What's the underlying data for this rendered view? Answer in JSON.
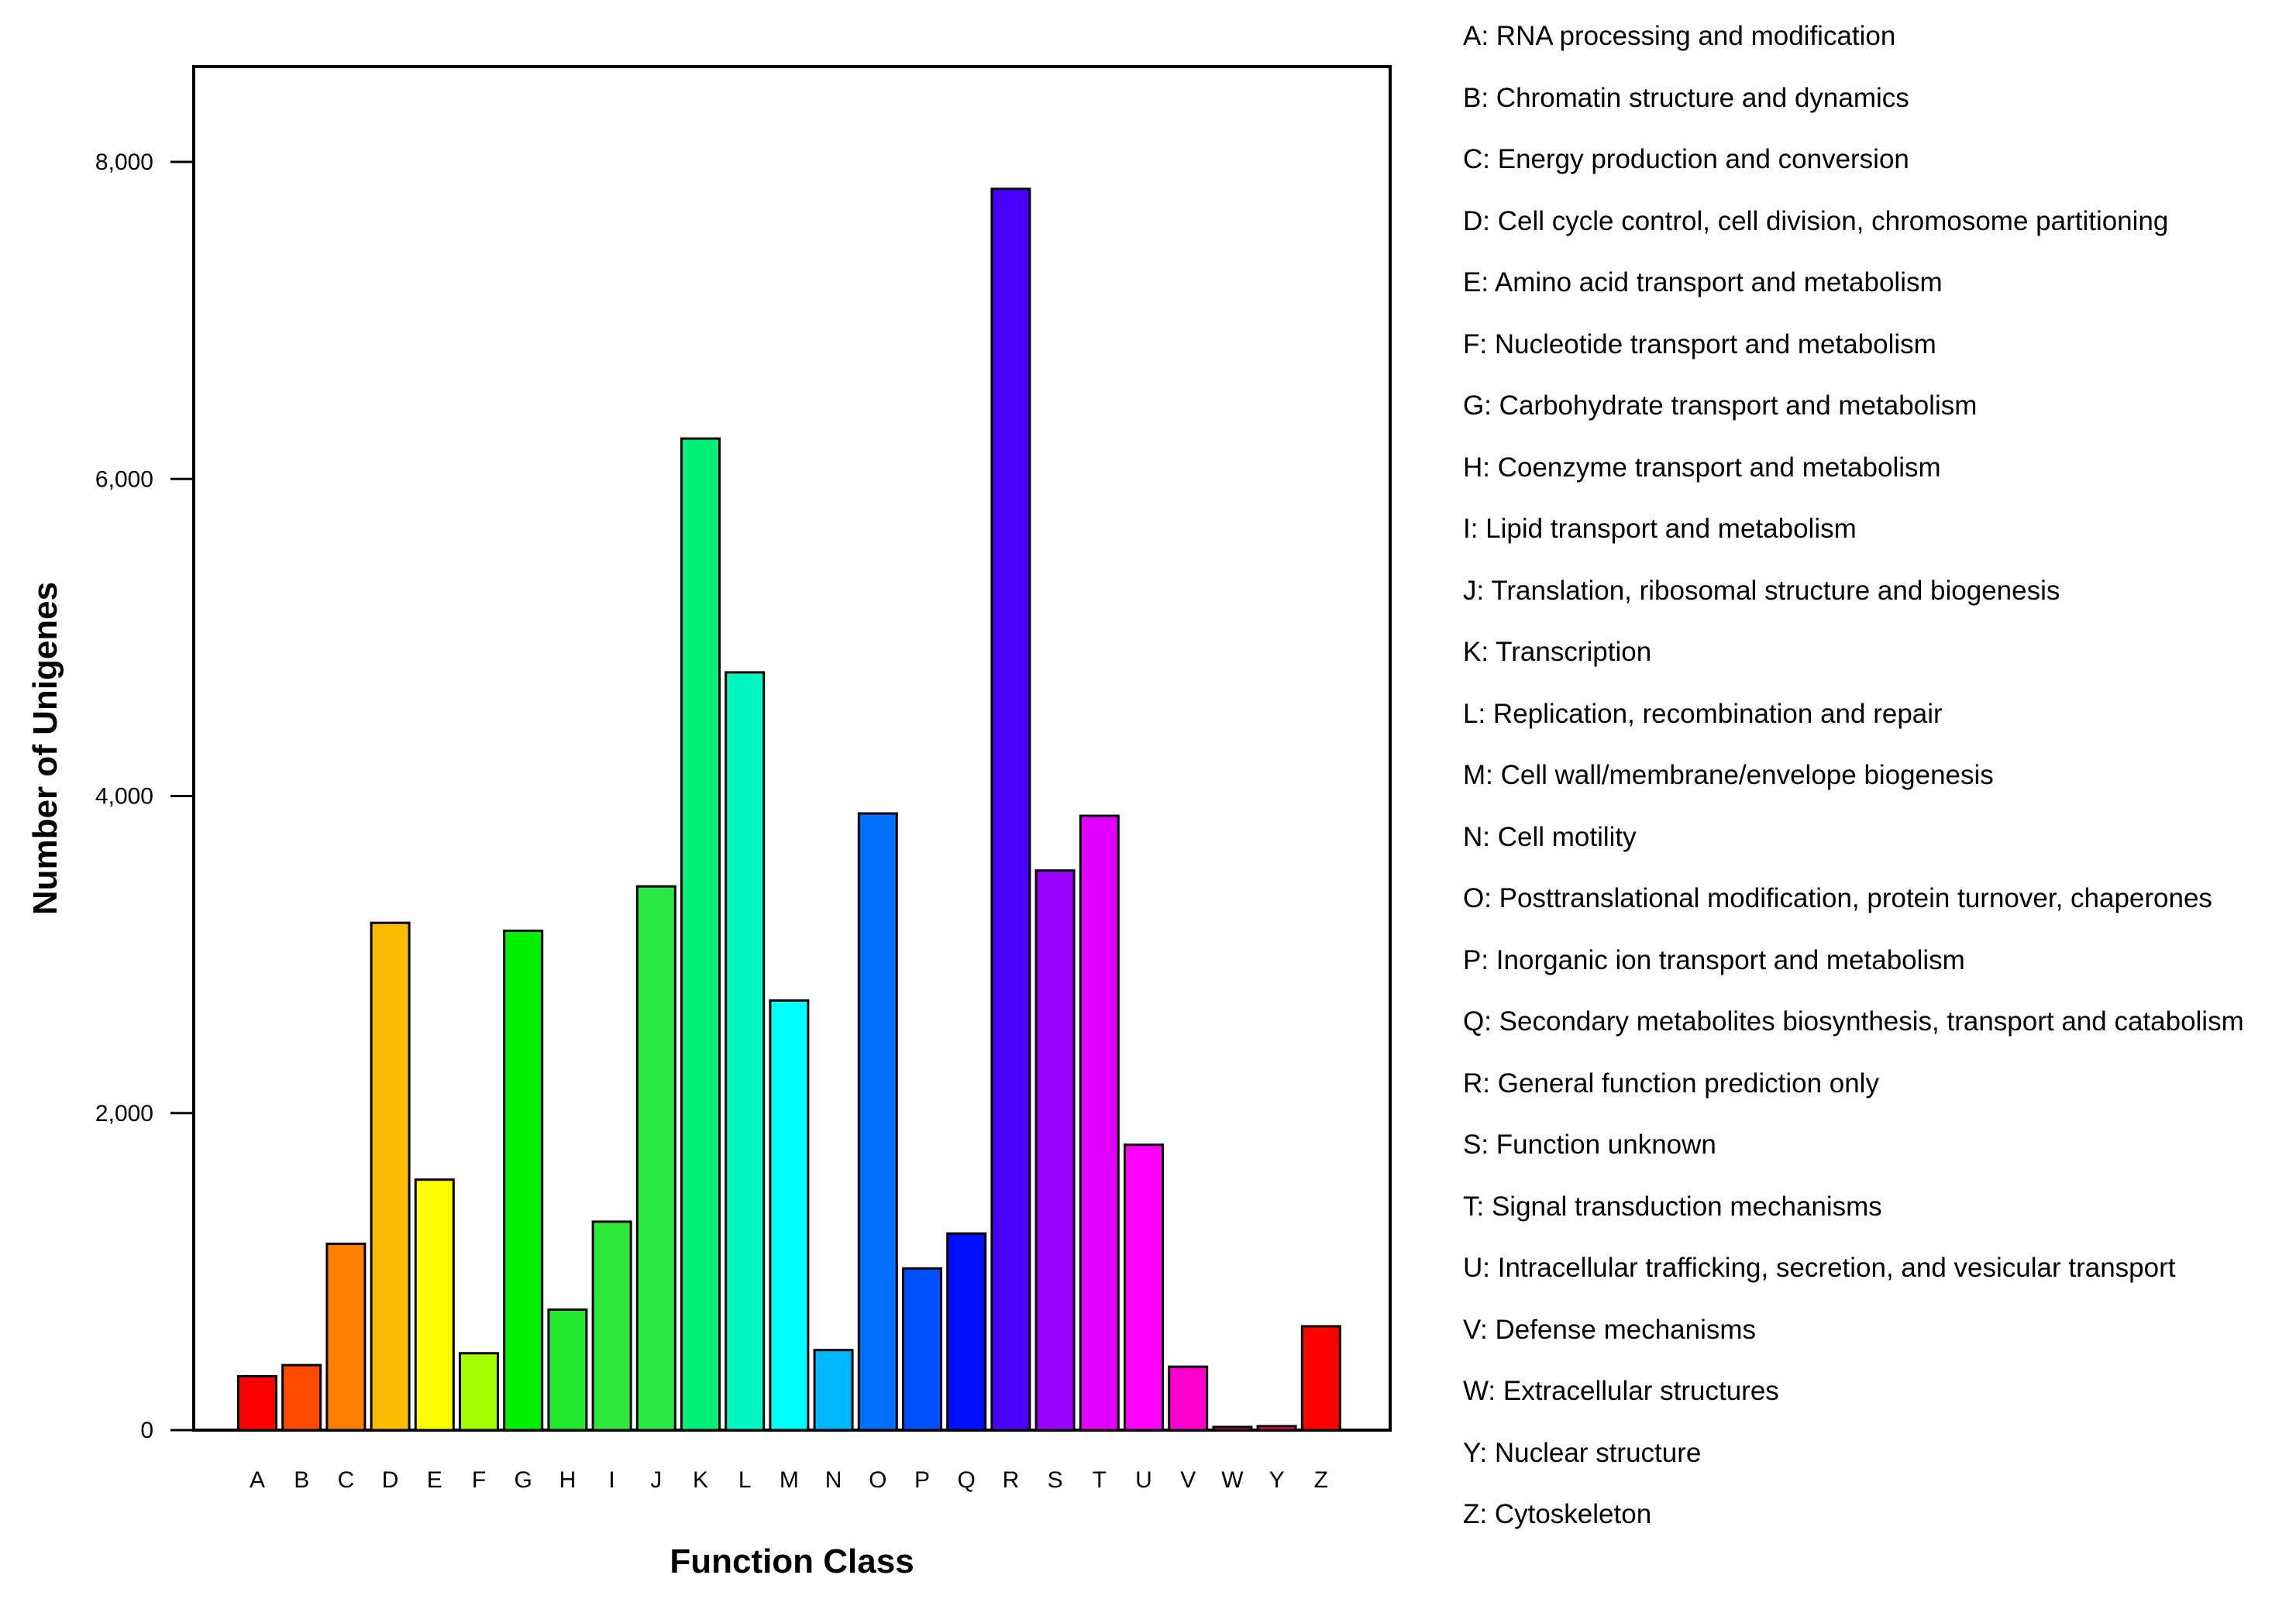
{
  "chart_data": {
    "type": "bar",
    "title": "",
    "xlabel": "Function Class",
    "ylabel": "Number of Unigenes",
    "ylim": [
      0,
      8600
    ],
    "yticks": [
      0,
      2000,
      4000,
      6000,
      8000
    ],
    "ytick_labels": [
      "0",
      "2,000",
      "4,000",
      "6,000",
      "8,000"
    ],
    "grid": false,
    "categories": [
      "A",
      "B",
      "C",
      "D",
      "E",
      "F",
      "G",
      "H",
      "I",
      "J",
      "K",
      "L",
      "M",
      "N",
      "O",
      "P",
      "Q",
      "R",
      "S",
      "T",
      "U",
      "V",
      "W",
      "Y",
      "Z"
    ],
    "values": [
      340,
      410,
      1175,
      3200,
      1580,
      485,
      3150,
      760,
      1315,
      3430,
      6255,
      4780,
      2710,
      505,
      3890,
      1020,
      1240,
      7830,
      3530,
      3875,
      1800,
      400,
      20,
      25,
      655
    ],
    "colors": [
      "#ff0000",
      "#ff4a00",
      "#ff8000",
      "#ffbb00",
      "#ffff00",
      "#a6ff00",
      "#00f000",
      "#22e830",
      "#2fe83a",
      "#2ae846",
      "#00f07a",
      "#00f5c0",
      "#00ffff",
      "#00b8ff",
      "#0070ff",
      "#0050ff",
      "#0010ff",
      "#4a00ff",
      "#9a00ff",
      "#e000ff",
      "#ff00ff",
      "#ff00cc",
      "#ff008c",
      "#ff0070",
      "#ff0000"
    ],
    "legend_position": "right",
    "legend": [
      {
        "code": "A",
        "text": "A: RNA processing and modification"
      },
      {
        "code": "B",
        "text": "B: Chromatin structure and dynamics"
      },
      {
        "code": "C",
        "text": "C: Energy production and conversion"
      },
      {
        "code": "D",
        "text": "D: Cell cycle control, cell division, chromosome partitioning"
      },
      {
        "code": "E",
        "text": "E: Amino acid transport and metabolism"
      },
      {
        "code": "F",
        "text": "F: Nucleotide transport and metabolism"
      },
      {
        "code": "G",
        "text": "G: Carbohydrate transport and metabolism"
      },
      {
        "code": "H",
        "text": "H: Coenzyme transport and metabolism"
      },
      {
        "code": "I",
        "text": "I: Lipid transport and metabolism"
      },
      {
        "code": "J",
        "text": "J: Translation, ribosomal structure and biogenesis"
      },
      {
        "code": "K",
        "text": "K: Transcription"
      },
      {
        "code": "L",
        "text": "L: Replication, recombination and repair"
      },
      {
        "code": "M",
        "text": "M: Cell wall/membrane/envelope biogenesis"
      },
      {
        "code": "N",
        "text": "N: Cell motility"
      },
      {
        "code": "O",
        "text": "O: Posttranslational modification, protein turnover, chaperones"
      },
      {
        "code": "P",
        "text": "P: Inorganic ion transport and metabolism"
      },
      {
        "code": "Q",
        "text": "Q: Secondary metabolites biosynthesis, transport and catabolism"
      },
      {
        "code": "R",
        "text": "R: General function prediction only"
      },
      {
        "code": "S",
        "text": "S: Function unknown"
      },
      {
        "code": "T",
        "text": "T: Signal transduction mechanisms"
      },
      {
        "code": "U",
        "text": "U: Intracellular trafficking, secretion, and vesicular transport"
      },
      {
        "code": "V",
        "text": "V: Defense mechanisms"
      },
      {
        "code": "W",
        "text": "W: Extracellular structures"
      },
      {
        "code": "Y",
        "text": "Y: Nuclear structure"
      },
      {
        "code": "Z",
        "text": "Z: Cytoskeleton"
      }
    ]
  }
}
